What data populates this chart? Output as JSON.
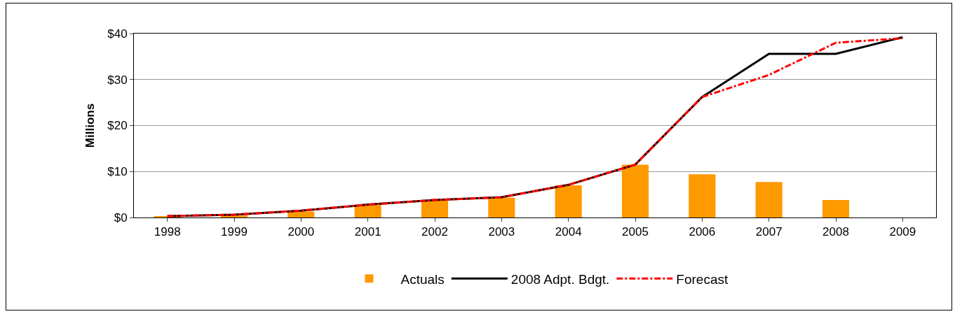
{
  "chart_data": {
    "type": "bar",
    "ylabel": "Millions",
    "categories": [
      "1998",
      "1999",
      "2000",
      "2001",
      "2002",
      "2003",
      "2004",
      "2005",
      "2006",
      "2007",
      "2008",
      "2009"
    ],
    "series": [
      {
        "name": "Actuals",
        "color": "#ff9900",
        "values": [
          0.2,
          0.4,
          1.3,
          2.7,
          3.7,
          4.3,
          7.0,
          11.5,
          9.4,
          7.7,
          3.8,
          null
        ]
      },
      {
        "name": "2008 Adpt. Bdgt.",
        "type": "line",
        "color": "#000000",
        "line_style": "solid",
        "values": [
          0.3,
          0.6,
          1.5,
          2.8,
          3.8,
          4.4,
          7.1,
          11.5,
          26.2,
          35.6,
          35.6,
          39.2
        ]
      },
      {
        "name": "Forecast",
        "type": "line",
        "color": "#ff0000",
        "line_style": "dashed",
        "values": [
          0.3,
          0.6,
          1.5,
          2.8,
          3.8,
          4.4,
          7.1,
          11.5,
          26.2,
          31.0,
          38.0,
          39.0
        ]
      }
    ],
    "ylim": [
      0,
      40
    ],
    "yticks": [
      {
        "value": 0,
        "label": "$0"
      },
      {
        "value": 10,
        "label": "$10"
      },
      {
        "value": 20,
        "label": "$20"
      },
      {
        "value": 30,
        "label": "$30"
      },
      {
        "value": 40,
        "label": "$40"
      }
    ],
    "grid": "y",
    "legend": "bottom",
    "marker": "none"
  }
}
